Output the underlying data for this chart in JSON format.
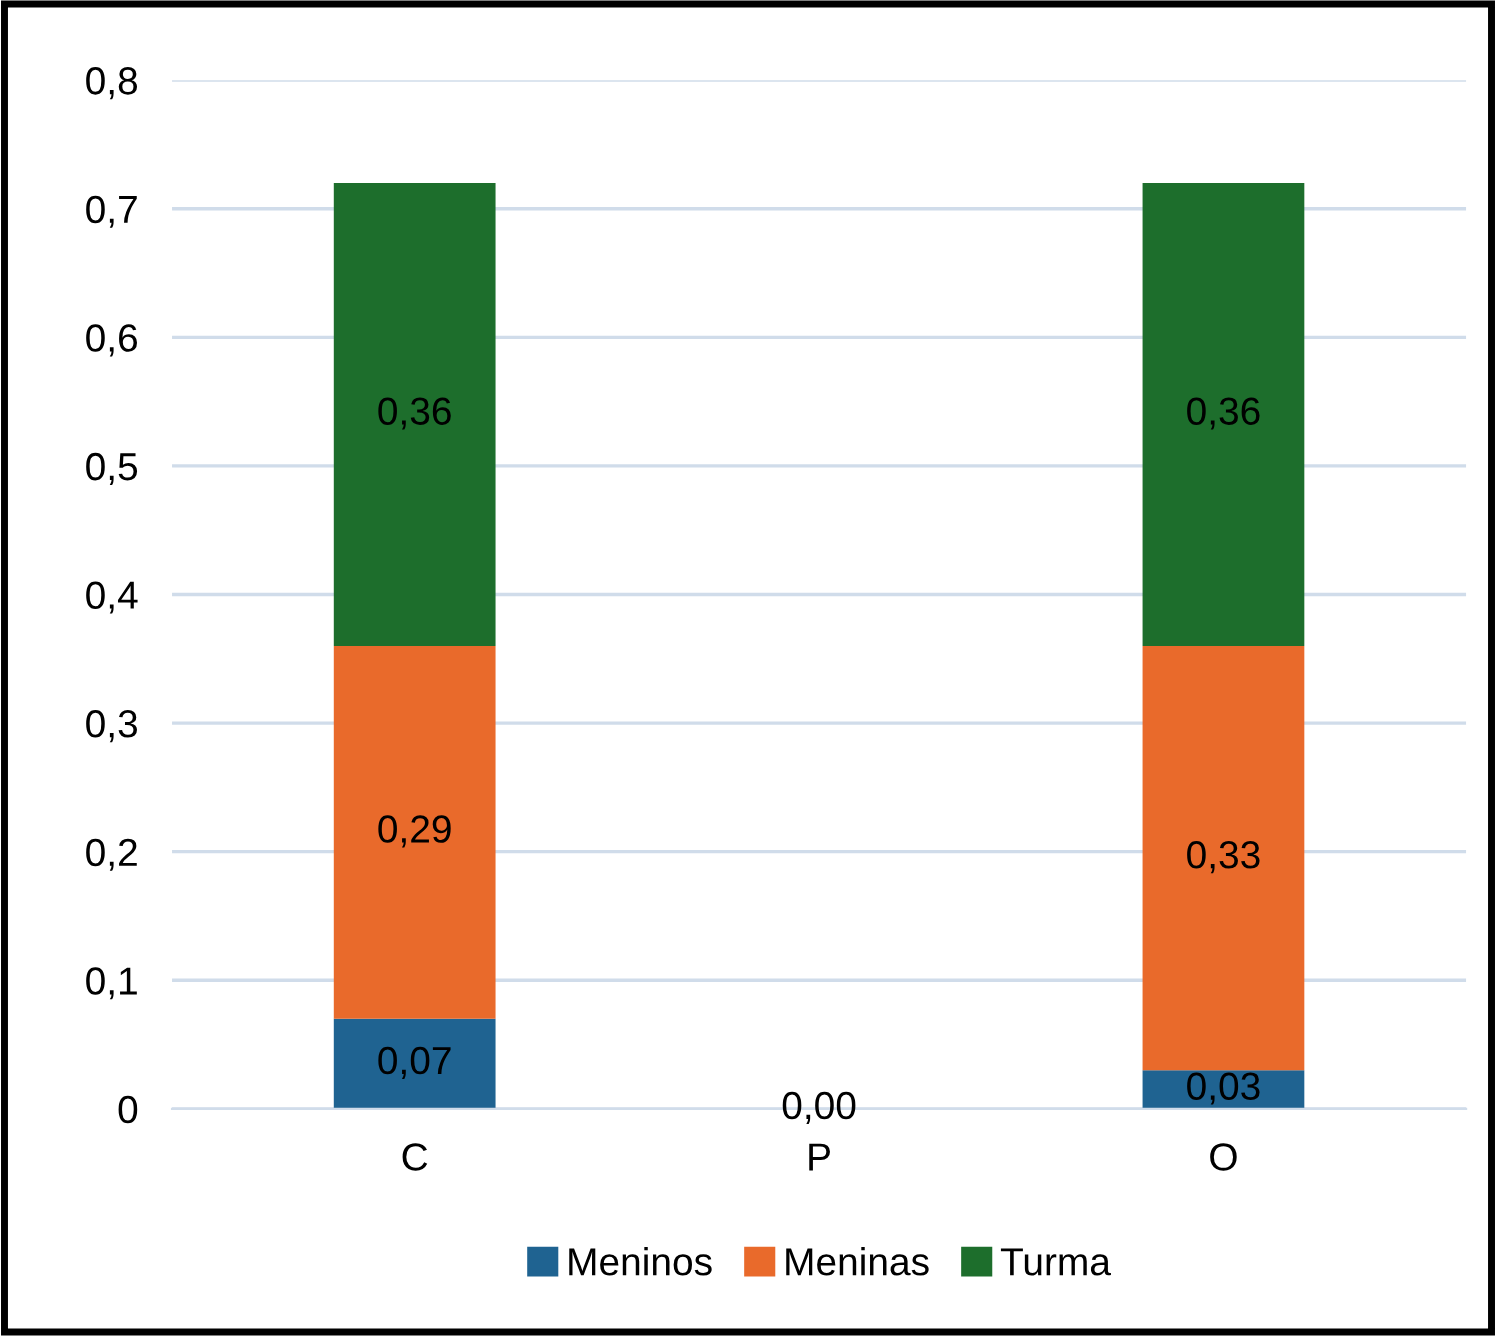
{
  "chart_data": {
    "type": "bar",
    "stacked": true,
    "categories": [
      "C",
      "P",
      "O"
    ],
    "series": [
      {
        "name": "Meninos",
        "color": "#1f6391",
        "values": [
          0.07,
          0,
          0.03
        ],
        "value_labels": [
          "0,07",
          null,
          "0,03"
        ]
      },
      {
        "name": "Meninas",
        "color": "#e96a2b",
        "values": [
          0.29,
          0,
          0.33
        ],
        "value_labels": [
          "0,29",
          null,
          "0,33"
        ]
      },
      {
        "name": "Turma",
        "color": "#1d6e2c",
        "values": [
          0.36,
          0,
          0.36
        ],
        "value_labels": [
          "0,36",
          "0,00",
          "0,36"
        ]
      }
    ],
    "ylim": [
      0,
      0.8
    ],
    "yticks": [
      0,
      {
        "value": 0.1,
        "label": "0,1"
      },
      {
        "value": 0.2,
        "label": "0,2"
      },
      {
        "value": 0.3,
        "label": "0,3"
      },
      {
        "value": 0.4,
        "label": "0,4"
      },
      {
        "value": 0.5,
        "label": "0,5"
      },
      {
        "value": 0.6,
        "label": "0,6"
      },
      {
        "value": 0.7,
        "label": "0,7"
      },
      {
        "value": 0.8,
        "label": "0,8"
      }
    ],
    "grid": "y",
    "legend": "bottom"
  }
}
